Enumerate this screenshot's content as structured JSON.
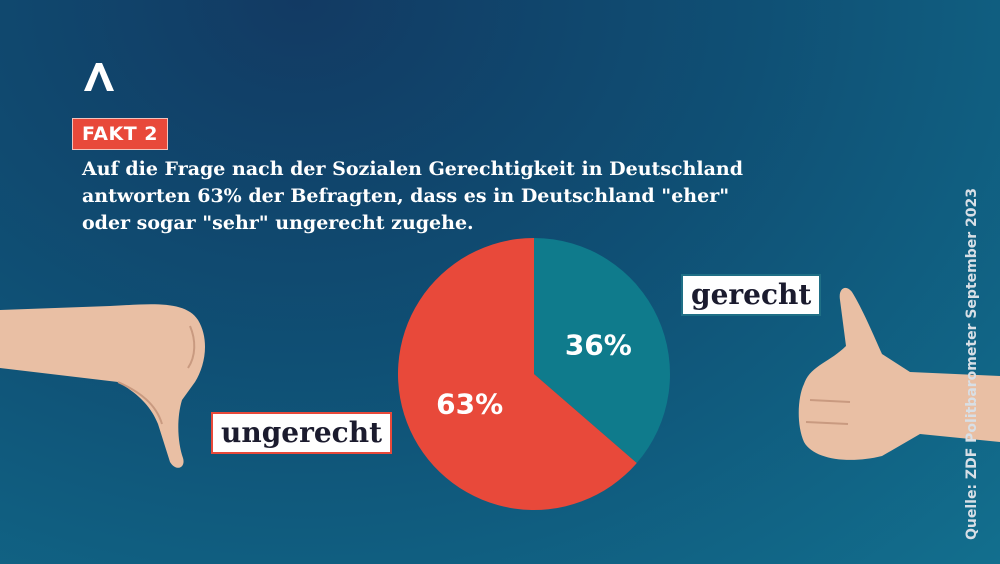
{
  "logo": {
    "icon": "caret-logo-icon"
  },
  "badge": {
    "text": "FAKT 2"
  },
  "headline": {
    "lines": [
      "Auf die Frage nach der Sozialen Gerechtigkeit in Deutschland",
      "antworten 63% der Befragten, dass es in Deutschland \"eher\"",
      "oder sogar \"sehr\" ungerecht zugehe."
    ]
  },
  "labels": {
    "gerecht": "gerecht",
    "ungerecht": "ungerecht"
  },
  "source": "Quelle: ZDF Politbarometer September 2023",
  "icons": {
    "left_hand": "thumbs-down-hand-icon",
    "right_hand": "thumbs-up-hand-icon"
  },
  "colors": {
    "red": "#e8493a",
    "teal": "#0f7b8c",
    "text": "#ffffff"
  },
  "chart_data": {
    "type": "pie",
    "categories": [
      "gerecht",
      "ungerecht"
    ],
    "values": [
      36,
      63
    ],
    "value_labels": [
      "36%",
      "63%"
    ],
    "colors": [
      "#0f7b8c",
      "#e8493a"
    ]
  }
}
